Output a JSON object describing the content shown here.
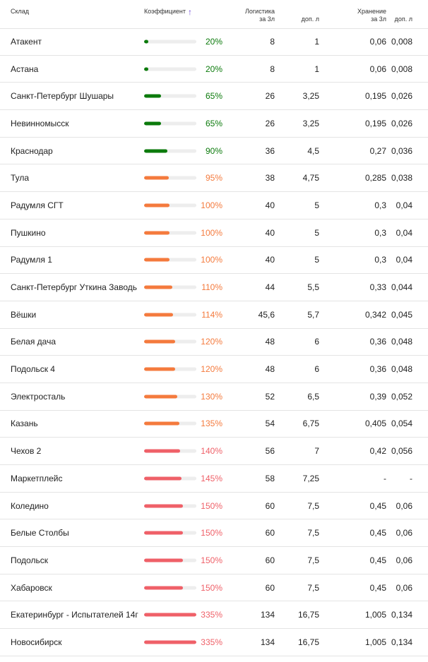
{
  "header": {
    "warehouse": "Склад",
    "coefficient": "Коэффициент",
    "sort_arrow": "↑",
    "logistics_line1": "Логистика",
    "logistics_line2": "за 3л",
    "logistics_add": "доп. л",
    "storage_line1": "Хранение",
    "storage_line2": "за 3л",
    "storage_add": "доп. л"
  },
  "colors": {
    "green": "#0b7a0b",
    "orange": "#f47a3d",
    "red": "#ef6068",
    "track": "#ededed"
  },
  "rows": [
    {
      "name": "Атакент",
      "coef": "20%",
      "fill": 0.08,
      "color": "green",
      "log": "8",
      "log_add": "1",
      "store": "0,06",
      "store_add": "0,008"
    },
    {
      "name": "Астана",
      "coef": "20%",
      "fill": 0.08,
      "color": "green",
      "log": "8",
      "log_add": "1",
      "store": "0,06",
      "store_add": "0,008"
    },
    {
      "name": "Санкт-Петербург Шушары",
      "coef": "65%",
      "fill": 0.32,
      "color": "green",
      "log": "26",
      "log_add": "3,25",
      "store": "0,195",
      "store_add": "0,026"
    },
    {
      "name": "Невинномысск",
      "coef": "65%",
      "fill": 0.32,
      "color": "green",
      "log": "26",
      "log_add": "3,25",
      "store": "0,195",
      "store_add": "0,026"
    },
    {
      "name": "Краснодар",
      "coef": "90%",
      "fill": 0.44,
      "color": "green",
      "log": "36",
      "log_add": "4,5",
      "store": "0,27",
      "store_add": "0,036"
    },
    {
      "name": "Тула",
      "coef": "95%",
      "fill": 0.47,
      "color": "orange",
      "log": "38",
      "log_add": "4,75",
      "store": "0,285",
      "store_add": "0,038"
    },
    {
      "name": "Радумля СГТ",
      "coef": "100%",
      "fill": 0.49,
      "color": "orange",
      "log": "40",
      "log_add": "5",
      "store": "0,3",
      "store_add": "0,04"
    },
    {
      "name": "Пушкино",
      "coef": "100%",
      "fill": 0.49,
      "color": "orange",
      "log": "40",
      "log_add": "5",
      "store": "0,3",
      "store_add": "0,04"
    },
    {
      "name": "Радумля 1",
      "coef": "100%",
      "fill": 0.49,
      "color": "orange",
      "log": "40",
      "log_add": "5",
      "store": "0,3",
      "store_add": "0,04"
    },
    {
      "name": "Санкт-Петербург Уткина Заводь",
      "coef": "110%",
      "fill": 0.54,
      "color": "orange",
      "log": "44",
      "log_add": "5,5",
      "store": "0,33",
      "store_add": "0,044"
    },
    {
      "name": "Вёшки",
      "coef": "114%",
      "fill": 0.56,
      "color": "orange",
      "log": "45,6",
      "log_add": "5,7",
      "store": "0,342",
      "store_add": "0,045"
    },
    {
      "name": "Белая дача",
      "coef": "120%",
      "fill": 0.59,
      "color": "orange",
      "log": "48",
      "log_add": "6",
      "store": "0,36",
      "store_add": "0,048"
    },
    {
      "name": "Подольск 4",
      "coef": "120%",
      "fill": 0.59,
      "color": "orange",
      "log": "48",
      "log_add": "6",
      "store": "0,36",
      "store_add": "0,048"
    },
    {
      "name": "Электросталь",
      "coef": "130%",
      "fill": 0.64,
      "color": "orange",
      "log": "52",
      "log_add": "6,5",
      "store": "0,39",
      "store_add": "0,052"
    },
    {
      "name": "Казань",
      "coef": "135%",
      "fill": 0.67,
      "color": "orange",
      "log": "54",
      "log_add": "6,75",
      "store": "0,405",
      "store_add": "0,054"
    },
    {
      "name": "Чехов 2",
      "coef": "140%",
      "fill": 0.69,
      "color": "red",
      "log": "56",
      "log_add": "7",
      "store": "0,42",
      "store_add": "0,056"
    },
    {
      "name": "Маркетплейс",
      "coef": "145%",
      "fill": 0.72,
      "color": "red",
      "log": "58",
      "log_add": "7,25",
      "store": "-",
      "store_add": "-"
    },
    {
      "name": "Коледино",
      "coef": "150%",
      "fill": 0.74,
      "color": "red",
      "log": "60",
      "log_add": "7,5",
      "store": "0,45",
      "store_add": "0,06"
    },
    {
      "name": "Белые Столбы",
      "coef": "150%",
      "fill": 0.74,
      "color": "red",
      "log": "60",
      "log_add": "7,5",
      "store": "0,45",
      "store_add": "0,06"
    },
    {
      "name": "Подольск",
      "coef": "150%",
      "fill": 0.74,
      "color": "red",
      "log": "60",
      "log_add": "7,5",
      "store": "0,45",
      "store_add": "0,06"
    },
    {
      "name": "Хабаровск",
      "coef": "150%",
      "fill": 0.74,
      "color": "red",
      "log": "60",
      "log_add": "7,5",
      "store": "0,45",
      "store_add": "0,06"
    },
    {
      "name": "Екатеринбург - Испытателей 14г",
      "coef": "335%",
      "fill": 1.0,
      "color": "red",
      "log": "134",
      "log_add": "16,75",
      "store": "1,005",
      "store_add": "0,134"
    },
    {
      "name": "Новосибирск",
      "coef": "335%",
      "fill": 1.0,
      "color": "red",
      "log": "134",
      "log_add": "16,75",
      "store": "1,005",
      "store_add": "0,134"
    }
  ]
}
